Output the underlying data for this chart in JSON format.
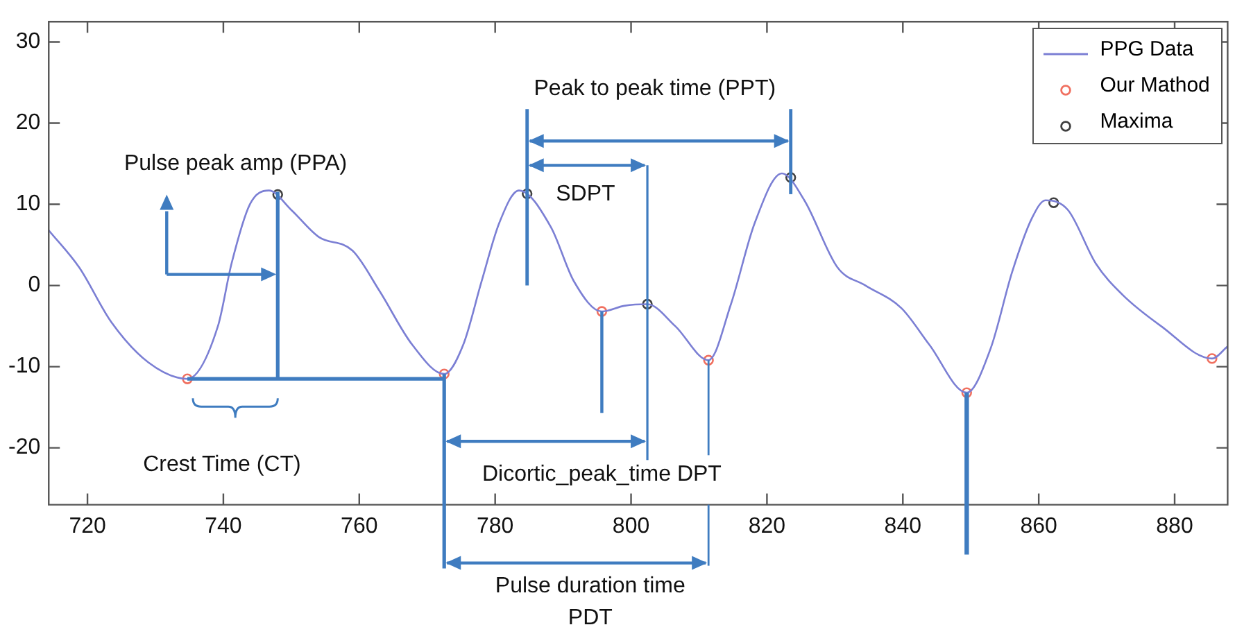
{
  "chart_data": {
    "type": "line",
    "xlim": [
      714.3,
      887.8
    ],
    "ylim": [
      -27,
      32.5
    ],
    "xticks": [
      720,
      740,
      760,
      780,
      800,
      820,
      840,
      860,
      880
    ],
    "yticks": [
      -20,
      -10,
      0,
      10,
      20,
      30
    ],
    "legend": "top right",
    "series": [
      {
        "name": "PPG Data",
        "color": "#7b7fd4",
        "marker": "none",
        "x": [
          714.3,
          718.8,
          723.5,
          729,
          734.7,
          739.2,
          741.2,
          743.9,
          746.7,
          750,
          754,
          759,
          763,
          767.8,
          772.5,
          775.3,
          778,
          780.6,
          783.5,
          788.2,
          791.6,
          795.7,
          799,
          802.4,
          806.5,
          811.4,
          814.7,
          818.2,
          822.2,
          825.5,
          830.4,
          834.5,
          839.8,
          843.9,
          849.4,
          852.9,
          856.1,
          859,
          861,
          864.3,
          868.4,
          872.4,
          878,
          885.5,
          887.8
        ],
        "values": [
          6.8,
          2.2,
          -4.5,
          -9.5,
          -11.5,
          -5,
          2.7,
          10,
          11.7,
          9.3,
          6,
          4.3,
          -0.7,
          -7.3,
          -10.9,
          -7.3,
          0.5,
          7.7,
          11.7,
          7.2,
          0.5,
          -3.2,
          -2.5,
          -2.3,
          -5,
          -9.2,
          -2.3,
          7.7,
          13.8,
          10.5,
          2.2,
          0,
          -2.8,
          -7.3,
          -13.2,
          -7.8,
          1.7,
          8.3,
          10.5,
          9.3,
          2.7,
          -1.2,
          -5,
          -9,
          -7.5
        ]
      },
      {
        "name": "Our Mathod",
        "type": "scatter",
        "color": "#f07060",
        "marker": "circle",
        "x": [
          734.7,
          772.5,
          795.7,
          811.4,
          849.4,
          885.5
        ],
        "values": [
          -11.5,
          -10.9,
          -3.2,
          -9.2,
          -13.2,
          -9
        ]
      },
      {
        "name": "Maxima",
        "type": "scatter",
        "color": "#404040",
        "marker": "circle",
        "x": [
          748,
          784.7,
          802.4,
          823.5,
          862.2
        ],
        "values": [
          11.2,
          11.3,
          -2.3,
          13.3,
          10.2
        ]
      }
    ],
    "annotations": [
      "Pulse peak amp (PPA)",
      "Peak to peak time (PPT)",
      "SDPT",
      "Crest Time (CT)",
      {
        "text": "Dicortic_peak_time DPT",
        "x": 811.4,
        "y": -9.2
      },
      "Pulse duration time PDT"
    ]
  }
}
